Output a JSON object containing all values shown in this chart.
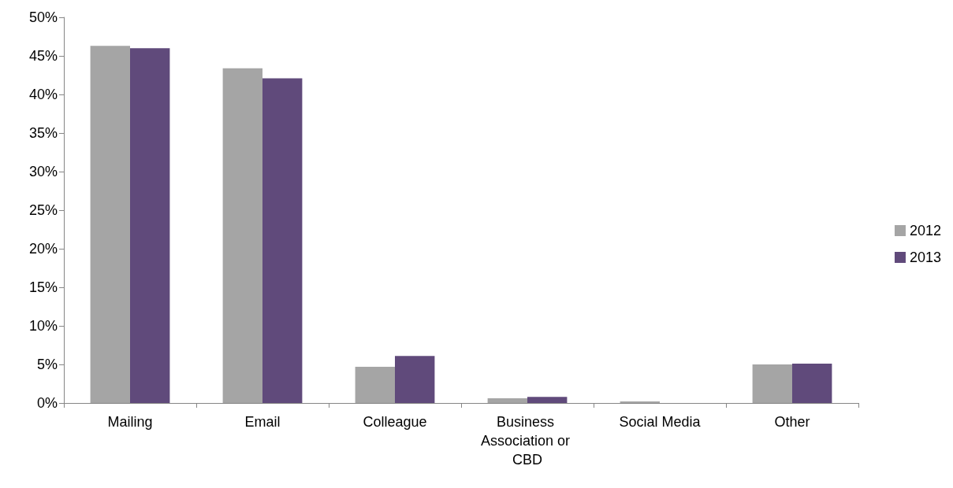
{
  "chart_data": {
    "type": "bar",
    "categories": [
      "Mailing",
      "Email",
      "Colleague",
      "Business Association or CBD",
      "Social Media",
      "Other"
    ],
    "series": [
      {
        "name": "2012",
        "color": "#a5a5a5",
        "values": [
          46.3,
          43.4,
          4.7,
          0.6,
          0.2,
          5.0
        ]
      },
      {
        "name": "2013",
        "color": "#604a7b",
        "values": [
          46.0,
          42.1,
          6.1,
          0.8,
          0,
          5.1
        ]
      }
    ],
    "ylim": [
      0,
      50
    ],
    "yticks": [
      {
        "value": 0,
        "label": "0%"
      },
      {
        "value": 5,
        "label": "5%"
      },
      {
        "value": 10,
        "label": "10%"
      },
      {
        "value": 15,
        "label": "15%"
      },
      {
        "value": 20,
        "label": "20%"
      },
      {
        "value": 25,
        "label": "25%"
      },
      {
        "value": 30,
        "label": "30%"
      },
      {
        "value": 35,
        "label": "35%"
      },
      {
        "value": 40,
        "label": "40%"
      },
      {
        "value": 45,
        "label": "45%"
      },
      {
        "value": 50,
        "label": "50%"
      }
    ],
    "grid": false,
    "legend": "right"
  }
}
